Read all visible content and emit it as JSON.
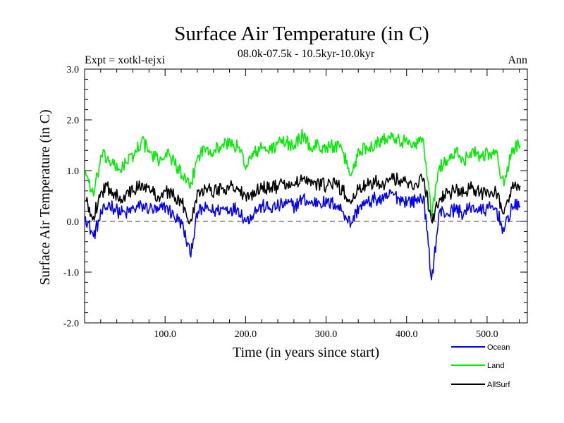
{
  "chart_data": {
    "type": "line",
    "title": "Surface Air Temperature (in C)",
    "subtitle": "08.0k-07.5k - 10.5kyr-10.0kyr",
    "expt_label": "Expt = xotkl-tejxi",
    "season_label": "Ann",
    "xlabel": "Time (in years since start)",
    "ylabel": "Surface Air Temperature (in C)",
    "xlim": [
      0,
      550
    ],
    "ylim": [
      -2.0,
      3.0
    ],
    "x_ticks": [
      100,
      200,
      300,
      400,
      500
    ],
    "x_tick_labels": [
      "100.0",
      "200.0",
      "300.0",
      "400.0",
      "500.0"
    ],
    "y_ticks": [
      -2.0,
      -1.0,
      0.0,
      1.0,
      2.0,
      3.0
    ],
    "y_tick_labels": [
      "-2.0",
      "-1.0",
      "0.0",
      "1.0",
      "2.0",
      "3.0"
    ],
    "zero_line": true,
    "x_start": 1,
    "x_step": 10,
    "series": [
      {
        "name": "Ocean",
        "color": "#0000ff",
        "values": [
          0.1,
          -0.3,
          0.15,
          0.35,
          0.2,
          0.15,
          0.25,
          0.3,
          0.25,
          0.2,
          0.3,
          0.1,
          -0.05,
          -0.65,
          0.2,
          0.25,
          0.2,
          0.25,
          0.25,
          0.25,
          0.0,
          0.2,
          0.3,
          0.25,
          0.3,
          0.35,
          0.3,
          0.45,
          0.35,
          0.4,
          0.35,
          0.35,
          0.2,
          -0.05,
          0.3,
          0.35,
          0.45,
          0.4,
          0.55,
          0.45,
          0.4,
          0.4,
          0.5,
          -1.15,
          0.2,
          0.15,
          0.25,
          0.15,
          0.3,
          0.2,
          0.25,
          0.25,
          -0.2,
          0.3,
          0.3
        ]
      },
      {
        "name": "Land",
        "color": "#00ee00",
        "values": [
          1.0,
          0.5,
          1.3,
          1.2,
          1.0,
          1.15,
          1.3,
          1.6,
          1.35,
          1.2,
          1.35,
          1.2,
          0.9,
          0.65,
          1.3,
          1.45,
          1.4,
          1.5,
          1.55,
          1.45,
          1.1,
          1.35,
          1.45,
          1.4,
          1.55,
          1.55,
          1.5,
          1.7,
          1.45,
          1.5,
          1.45,
          1.5,
          1.35,
          0.9,
          1.4,
          1.45,
          1.55,
          1.6,
          1.75,
          1.6,
          1.55,
          1.55,
          1.6,
          0.1,
          1.1,
          1.2,
          1.35,
          1.2,
          1.4,
          1.3,
          1.35,
          1.35,
          0.7,
          1.45,
          1.5
        ]
      },
      {
        "name": "AllSurf",
        "color": "#000000",
        "values": [
          0.4,
          0.1,
          0.6,
          0.65,
          0.5,
          0.5,
          0.6,
          0.75,
          0.6,
          0.5,
          0.6,
          0.5,
          0.35,
          0.0,
          0.6,
          0.65,
          0.6,
          0.65,
          0.7,
          0.65,
          0.4,
          0.6,
          0.7,
          0.65,
          0.7,
          0.75,
          0.7,
          0.85,
          0.7,
          0.75,
          0.7,
          0.75,
          0.6,
          0.35,
          0.65,
          0.7,
          0.8,
          0.75,
          0.85,
          0.8,
          0.75,
          0.75,
          0.85,
          0.0,
          0.45,
          0.55,
          0.6,
          0.55,
          0.65,
          0.55,
          0.6,
          0.6,
          0.15,
          0.65,
          0.7
        ]
      }
    ]
  }
}
